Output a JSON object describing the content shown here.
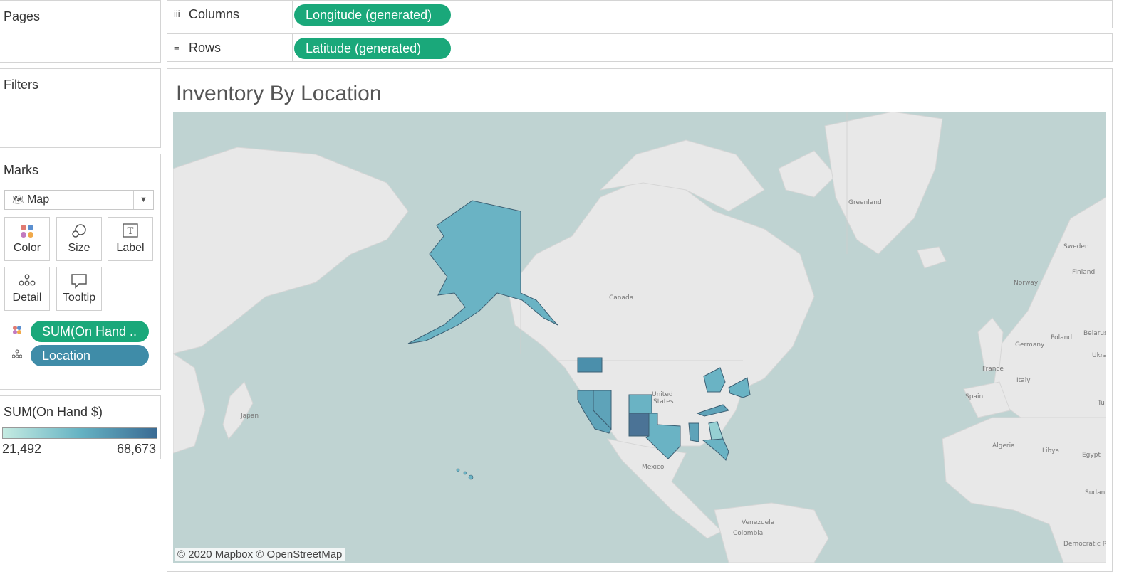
{
  "cards": {
    "pages": "Pages",
    "filters": "Filters",
    "marks": "Marks"
  },
  "marks": {
    "type": "Map",
    "buttons": {
      "color": "Color",
      "size": "Size",
      "label": "Label",
      "detail": "Detail",
      "tooltip": "Tooltip"
    },
    "fields": [
      {
        "label": "SUM(On Hand ..",
        "encoding": "color"
      },
      {
        "label": "Location",
        "encoding": "detail"
      }
    ]
  },
  "legend": {
    "title": "SUM(On Hand $)",
    "min": "21,492",
    "max": "68,673",
    "colors": {
      "low": "#c5ebe2",
      "mid": "#66b3c3",
      "high": "#3a6b94"
    }
  },
  "shelves": {
    "columns": {
      "label": "Columns",
      "pill": "Longitude (generated)"
    },
    "rows": {
      "label": "Rows",
      "pill": "Latitude (generated)"
    }
  },
  "viz": {
    "title": "Inventory By Location",
    "credit": "© 2020 Mapbox © OpenStreetMap",
    "map_labels": {
      "greenland": "Greenland",
      "canada": "Canada",
      "united_states": "United States",
      "mexico": "Mexico",
      "japan": "Japan",
      "sweden": "Sweden",
      "finland": "Finland",
      "norway": "Norway",
      "belarus": "Belarus",
      "poland": "Poland",
      "germany": "Germany",
      "ukraine": "Ukra",
      "france": "France",
      "italy": "Italy",
      "spain": "Spain",
      "tunisia": "Tu",
      "algeria": "Algeria",
      "libya": "Libya",
      "egypt": "Egypt",
      "sudan": "Sudan",
      "venezuela": "Venezuela",
      "colombia": "Colombia",
      "drc": "Democratic Republic of Congo"
    },
    "states": [
      {
        "name": "Alaska",
        "level": "mid"
      },
      {
        "name": "Washington",
        "level": "high"
      },
      {
        "name": "California",
        "level": "mid"
      },
      {
        "name": "Nevada",
        "level": "mid"
      },
      {
        "name": "Colorado",
        "level": "mid"
      },
      {
        "name": "New Mexico",
        "level": "high"
      },
      {
        "name": "Texas",
        "level": "mid"
      },
      {
        "name": "Michigan",
        "level": "mid"
      },
      {
        "name": "Kentucky",
        "level": "mid"
      },
      {
        "name": "New York",
        "level": "mid"
      },
      {
        "name": "Mississippi",
        "level": "mid"
      },
      {
        "name": "Georgia",
        "level": "low"
      },
      {
        "name": "Florida",
        "level": "mid"
      }
    ]
  }
}
